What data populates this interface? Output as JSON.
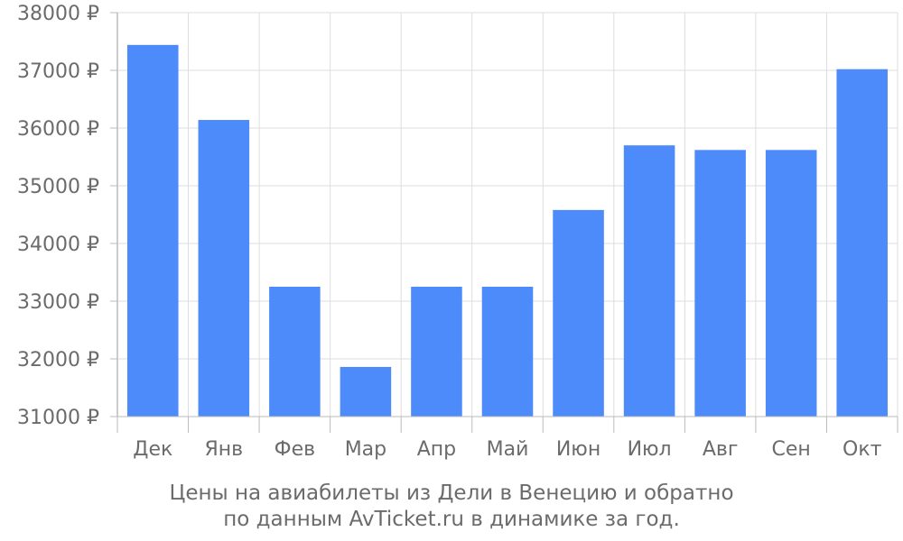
{
  "chart_data": {
    "type": "bar",
    "categories": [
      "Дек",
      "Янв",
      "Фев",
      "Мар",
      "Апр",
      "Май",
      "Июн",
      "Июл",
      "Авг",
      "Сен",
      "Окт"
    ],
    "values": [
      37440,
      36140,
      33250,
      31860,
      33250,
      33250,
      34580,
      35700,
      35620,
      35620,
      37020
    ],
    "ylim": [
      31000,
      38000
    ],
    "yticks": [
      31000,
      32000,
      33000,
      34000,
      35000,
      36000,
      37000,
      38000
    ],
    "ytick_labels": [
      "31000 ₽",
      "32000 ₽",
      "33000 ₽",
      "34000 ₽",
      "35000 ₽",
      "36000 ₽",
      "37000 ₽",
      "38000 ₽"
    ],
    "grid": true,
    "colors": {
      "bar": "#4d8afa",
      "grid": "#dddddd",
      "axis": "#bbbbbb",
      "text": "#6b6b6b"
    },
    "caption": [
      "Цены на авиабилеты из Дели в Венецию и обратно",
      "по данным AvTicket.ru в динамике за год."
    ]
  }
}
